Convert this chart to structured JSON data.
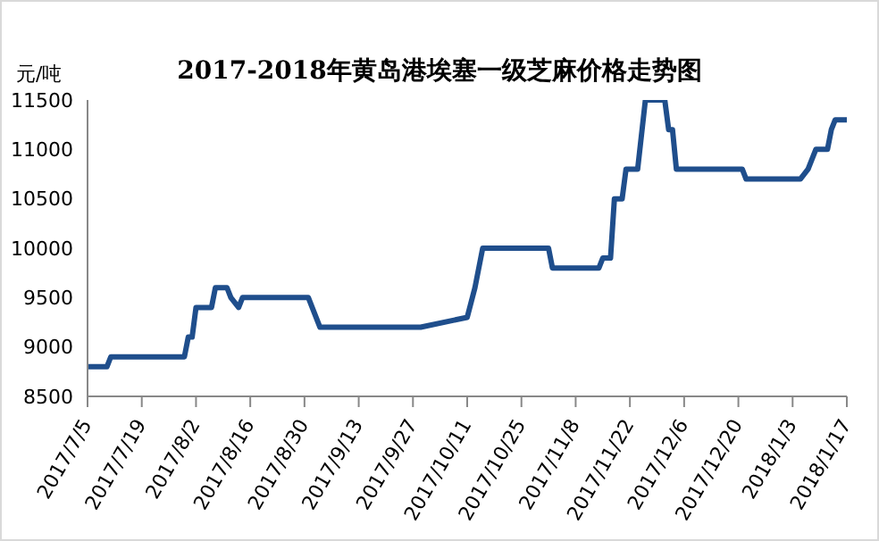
{
  "chart_data": {
    "type": "line",
    "title": "2017-2018年黄岛港埃塞一级芝麻价格走势图",
    "ylabel": "元/吨",
    "x": [
      "2017-07-05",
      "2017-07-10",
      "2017-07-11",
      "2017-07-30",
      "2017-07-31",
      "2017-08-01",
      "2017-08-02",
      "2017-08-06",
      "2017-08-07",
      "2017-08-10",
      "2017-08-11",
      "2017-08-13",
      "2017-08-14",
      "2017-08-31",
      "2017-09-03",
      "2017-09-29",
      "2017-10-11",
      "2017-10-13",
      "2017-10-15",
      "2017-11-01",
      "2017-11-02",
      "2017-11-14",
      "2017-11-15",
      "2017-11-17",
      "2017-11-18",
      "2017-11-20",
      "2017-11-21",
      "2017-11-24",
      "2017-11-26",
      "2017-12-01",
      "2017-12-02",
      "2017-12-03",
      "2017-12-04",
      "2017-12-21",
      "2017-12-22",
      "2018-01-05",
      "2018-01-07",
      "2018-01-08",
      "2018-01-09",
      "2018-01-12",
      "2018-01-13",
      "2018-01-14",
      "2018-01-17"
    ],
    "series": [
      {
        "color": "#1f4e8c",
        "values": [
          8800,
          8800,
          8900,
          8900,
          9100,
          9100,
          9400,
          9400,
          9600,
          9600,
          9500,
          9400,
          9500,
          9500,
          9200,
          9200,
          9300,
          9600,
          10000,
          10000,
          9800,
          9800,
          9900,
          9900,
          10500,
          10500,
          10800,
          10800,
          11500,
          11500,
          11200,
          11200,
          10800,
          10800,
          10700,
          10700,
          10800,
          10900,
          11000,
          11000,
          11200,
          11300,
          11300
        ]
      }
    ],
    "xlim": [
      "2017-07-05",
      "2018-01-17"
    ],
    "xticks": [
      {
        "value": "2017-07-05",
        "label": "2017/7/5"
      },
      {
        "value": "2017-07-19",
        "label": "2017/7/19"
      },
      {
        "value": "2017-08-02",
        "label": "2017/8/2"
      },
      {
        "value": "2017-08-16",
        "label": "2017/8/16"
      },
      {
        "value": "2017-08-30",
        "label": "2017/8/30"
      },
      {
        "value": "2017-09-13",
        "label": "2017/9/13"
      },
      {
        "value": "2017-09-27",
        "label": "2017/9/27"
      },
      {
        "value": "2017-10-11",
        "label": "2017/10/11"
      },
      {
        "value": "2017-10-25",
        "label": "2017/10/25"
      },
      {
        "value": "2017-11-08",
        "label": "2017/11/8"
      },
      {
        "value": "2017-11-22",
        "label": "2017/11/22"
      },
      {
        "value": "2017-12-06",
        "label": "2017/12/6"
      },
      {
        "value": "2017-12-20",
        "label": "2017/12/20"
      },
      {
        "value": "2018-01-03",
        "label": "2018/1/3"
      },
      {
        "value": "2018-01-17",
        "label": "2018/1/17"
      }
    ],
    "ylim": [
      8500,
      11500
    ],
    "yticks": [
      8500,
      9000,
      9500,
      10000,
      10500,
      11000,
      11500
    ],
    "grid": false,
    "legend": false,
    "marker": "none",
    "line_style": "solid"
  }
}
